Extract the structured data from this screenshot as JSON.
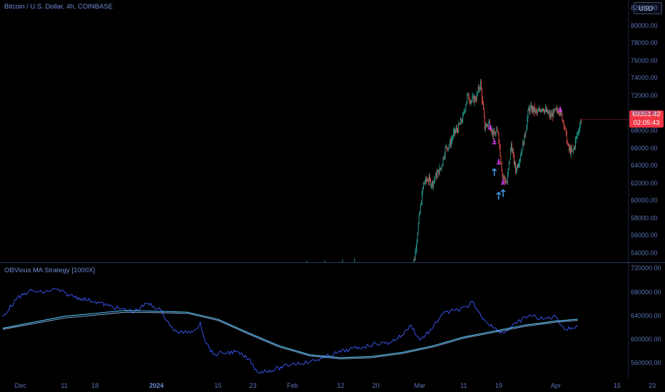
{
  "header": {
    "symbol_title": "Bitcoin / U.S. Dollar, 4h, COINBASE",
    "currency_button": "USD"
  },
  "price_badge": {
    "price": "69351.42",
    "countdown": "02:05:43"
  },
  "indicator": {
    "title": "OBVious MA Strategy [1000X]"
  },
  "colors": {
    "background": "#000000",
    "up_candle": "#26a69a",
    "down_candle": "#ef5350",
    "signal": "#e040fb",
    "buy_arrow": "#42a5f5",
    "obv_line": "#3d5afe",
    "ma_line": "#4fc3f7",
    "price_badge": "#f23645"
  },
  "main_axis_labels": [
    "82000.00",
    "80000.00",
    "78000.00",
    "76000.00",
    "74000.00",
    "72000.00",
    "70000.00",
    "68000.00",
    "66000.00",
    "64000.00",
    "62000.00",
    "60000.00",
    "58000.00",
    "56000.00",
    "54000.00"
  ],
  "osc_axis_labels": [
    "720000.00",
    "680000.00",
    "640000.00",
    "600000.00",
    "560000.00"
  ],
  "x_axis_labels": [
    {
      "text": "Dec",
      "bold": false
    },
    {
      "text": "11",
      "bold": false
    },
    {
      "text": "18",
      "bold": false
    },
    {
      "text": "2024",
      "bold": true
    },
    {
      "text": "15",
      "bold": false
    },
    {
      "text": "23",
      "bold": false
    },
    {
      "text": "Feb",
      "bold": false
    },
    {
      "text": "12",
      "bold": false
    },
    {
      "text": "20",
      "bold": false
    },
    {
      "text": "Mar",
      "bold": false
    },
    {
      "text": "11",
      "bold": false
    },
    {
      "text": "19",
      "bold": false
    },
    {
      "text": "Apr",
      "bold": false
    },
    {
      "text": "15",
      "bold": false
    },
    {
      "text": "23",
      "bold": false
    }
  ],
  "chart_data": [
    {
      "type": "candlestick",
      "title": "Bitcoin / U.S. Dollar, 4h, COINBASE",
      "ylim": [
        53000,
        83000
      ],
      "axis_side": "right",
      "grid": false,
      "last_price": 69351.42,
      "x": [
        "2024-02-28",
        "2024-02-29",
        "2024-03-01",
        "2024-03-02",
        "2024-03-03",
        "2024-03-04",
        "2024-03-05",
        "2024-03-06",
        "2024-03-07",
        "2024-03-08",
        "2024-03-09",
        "2024-03-10",
        "2024-03-11",
        "2024-03-12",
        "2024-03-13",
        "2024-03-14",
        "2024-03-15",
        "2024-03-16",
        "2024-03-17",
        "2024-03-18",
        "2024-03-19",
        "2024-03-20",
        "2024-03-21",
        "2024-03-22",
        "2024-03-23",
        "2024-03-24",
        "2024-03-25",
        "2024-03-26",
        "2024-03-27",
        "2024-03-28",
        "2024-03-29",
        "2024-03-30",
        "2024-03-31",
        "2024-04-01",
        "2024-04-02",
        "2024-04-03",
        "2024-04-04",
        "2024-04-05",
        "2024-04-06"
      ],
      "close": [
        53500,
        58000,
        62000,
        62500,
        62000,
        63000,
        63800,
        66000,
        66500,
        67800,
        68400,
        69500,
        72000,
        71500,
        71800,
        73500,
        68500,
        69000,
        67500,
        68000,
        63000,
        62000,
        66500,
        63500,
        65000,
        67200,
        70500,
        70500,
        70000,
        70800,
        70200,
        69700,
        70200,
        70500,
        69000,
        66000,
        65500,
        67500,
        69351.42
      ],
      "signals": [
        {
          "x": "2024-03-17",
          "y": 68500,
          "kind": "sell"
        },
        {
          "x": "2024-03-18",
          "y": 66800,
          "kind": "sell"
        },
        {
          "x": "2024-03-19",
          "y": 64500,
          "kind": "sell"
        },
        {
          "x": "2024-03-20",
          "y": 62200,
          "kind": "sell"
        },
        {
          "x": "2024-04-02",
          "y": 70500,
          "kind": "sell"
        },
        {
          "x": "2024-03-18",
          "y": 63200,
          "kind": "buy"
        },
        {
          "x": "2024-03-19",
          "y": 60500,
          "kind": "buy"
        },
        {
          "x": "2024-03-20",
          "y": 60800,
          "kind": "buy"
        }
      ]
    },
    {
      "type": "line",
      "title": "OBVious MA Strategy [1000X]",
      "ylim": [
        535000,
        730000
      ],
      "axis_side": "right",
      "grid": false,
      "series": [
        {
          "values": [
            [
              "2023-11-27",
              640000
            ],
            [
              "2023-11-30",
              668000
            ],
            [
              "2023-12-03",
              683000
            ],
            [
              "2023-12-06",
              680000
            ],
            [
              "2023-12-09",
              686000
            ],
            [
              "2023-12-12",
              676000
            ],
            [
              "2023-12-15",
              670000
            ],
            [
              "2023-12-18",
              665000
            ],
            [
              "2023-12-21",
              658000
            ],
            [
              "2023-12-24",
              652000
            ],
            [
              "2023-12-27",
              648000
            ],
            [
              "2023-12-30",
              662000
            ],
            [
              "2024-01-02",
              650000
            ],
            [
              "2024-01-05",
              615000
            ],
            [
              "2024-01-08",
              612000
            ],
            [
              "2024-01-10",
              618000
            ],
            [
              "2024-01-11",
              630000
            ],
            [
              "2024-01-12",
              600000
            ],
            [
              "2024-01-14",
              575000
            ],
            [
              "2024-01-16",
              578000
            ],
            [
              "2024-01-19",
              580000
            ],
            [
              "2024-01-22",
              568000
            ],
            [
              "2024-01-24",
              546000
            ],
            [
              "2024-01-28",
              550000
            ],
            [
              "2024-02-01",
              560000
            ],
            [
              "2024-02-05",
              563000
            ],
            [
              "2024-02-08",
              570000
            ],
            [
              "2024-02-11",
              578000
            ],
            [
              "2024-02-14",
              584000
            ],
            [
              "2024-02-17",
              588000
            ],
            [
              "2024-02-20",
              594000
            ],
            [
              "2024-02-23",
              595000
            ],
            [
              "2024-02-26",
              608000
            ],
            [
              "2024-02-28",
              625000
            ],
            [
              "2024-03-01",
              600000
            ],
            [
              "2024-03-04",
              620000
            ],
            [
              "2024-03-06",
              644000
            ],
            [
              "2024-03-09",
              650000
            ],
            [
              "2024-03-12",
              655000
            ],
            [
              "2024-03-13",
              665000
            ],
            [
              "2024-03-15",
              640000
            ],
            [
              "2024-03-18",
              620000
            ],
            [
              "2024-03-20",
              612000
            ],
            [
              "2024-03-23",
              628000
            ],
            [
              "2024-03-26",
              642000
            ],
            [
              "2024-03-29",
              635000
            ],
            [
              "2024-04-01",
              640000
            ],
            [
              "2024-04-03",
              618000
            ],
            [
              "2024-04-05",
              620000
            ],
            [
              "2024-04-06",
              625000
            ]
          ]
        },
        {
          "values": [
            [
              "2023-11-27",
              620000
            ],
            [
              "2023-12-11",
              640000
            ],
            [
              "2023-12-25",
              650000
            ],
            [
              "2024-01-08",
              647000
            ],
            [
              "2024-01-15",
              635000
            ],
            [
              "2024-01-22",
              612000
            ],
            [
              "2024-01-29",
              590000
            ],
            [
              "2024-02-05",
              575000
            ],
            [
              "2024-02-12",
              570000
            ],
            [
              "2024-02-19",
              572000
            ],
            [
              "2024-02-26",
              579000
            ],
            [
              "2024-03-04",
              590000
            ],
            [
              "2024-03-11",
              605000
            ],
            [
              "2024-03-18",
              615000
            ],
            [
              "2024-03-25",
              625000
            ],
            [
              "2024-04-01",
              632000
            ],
            [
              "2024-04-06",
              635000
            ]
          ]
        },
        {
          "values": [
            [
              "2023-11-27",
              618000
            ],
            [
              "2023-12-11",
              637000
            ],
            [
              "2023-12-25",
              647000
            ],
            [
              "2024-01-08",
              645000
            ],
            [
              "2024-01-15",
              633000
            ],
            [
              "2024-01-22",
              610000
            ],
            [
              "2024-01-29",
              588000
            ],
            [
              "2024-02-05",
              573000
            ],
            [
              "2024-02-12",
              568000
            ],
            [
              "2024-02-19",
              570000
            ],
            [
              "2024-02-26",
              577000
            ],
            [
              "2024-03-04",
              588000
            ],
            [
              "2024-03-11",
              603000
            ],
            [
              "2024-03-18",
              613000
            ],
            [
              "2024-03-25",
              623000
            ],
            [
              "2024-04-01",
              630000
            ],
            [
              "2024-04-06",
              633000
            ]
          ]
        }
      ]
    }
  ]
}
